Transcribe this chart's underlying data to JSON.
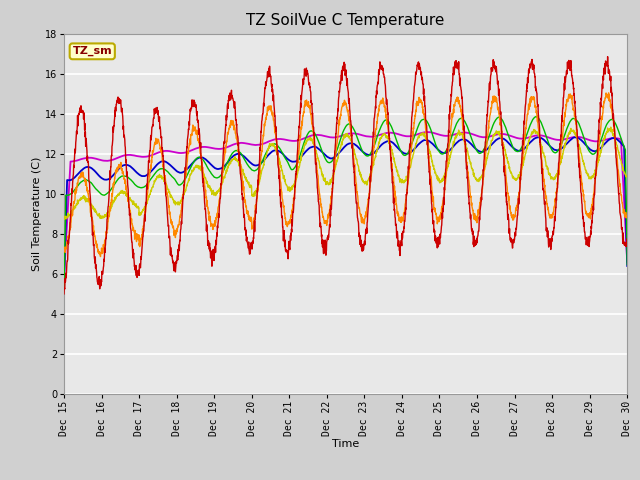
{
  "title": "TZ SoilVue C Temperature",
  "xlabel": "Time",
  "ylabel": "Soil Temperature (C)",
  "ylim": [
    0,
    18
  ],
  "yticks": [
    0,
    2,
    4,
    6,
    8,
    10,
    12,
    14,
    16,
    18
  ],
  "xlim": [
    0,
    360
  ],
  "x_tick_positions": [
    0,
    24,
    48,
    72,
    96,
    120,
    144,
    168,
    192,
    216,
    240,
    264,
    288,
    312,
    336,
    360
  ],
  "x_tick_labels": [
    "Dec 15",
    "Dec 16",
    "Dec 17",
    "Dec 18",
    "Dec 19",
    "Dec 20",
    "Dec 21",
    "Dec 22",
    "Dec 23",
    "Dec 24",
    "Dec 25",
    "Dec 26",
    "Dec 27",
    "Dec 28",
    "Dec 29",
    "Dec 30"
  ],
  "series_colors": {
    "C-05_T": "#cc0000",
    "C-10_T": "#ff8800",
    "C-20_T": "#cccc00",
    "C-30_T": "#00bb00",
    "C-40_T": "#0000cc",
    "C-50_T": "#cc00cc"
  },
  "legend_label": "TZ_sm",
  "fig_facecolor": "#d0d0d0",
  "ax_facecolor": "#e8e8e8",
  "grid_color": "#ffffff",
  "title_fontsize": 11,
  "axis_fontsize": 8,
  "tick_fontsize": 7
}
